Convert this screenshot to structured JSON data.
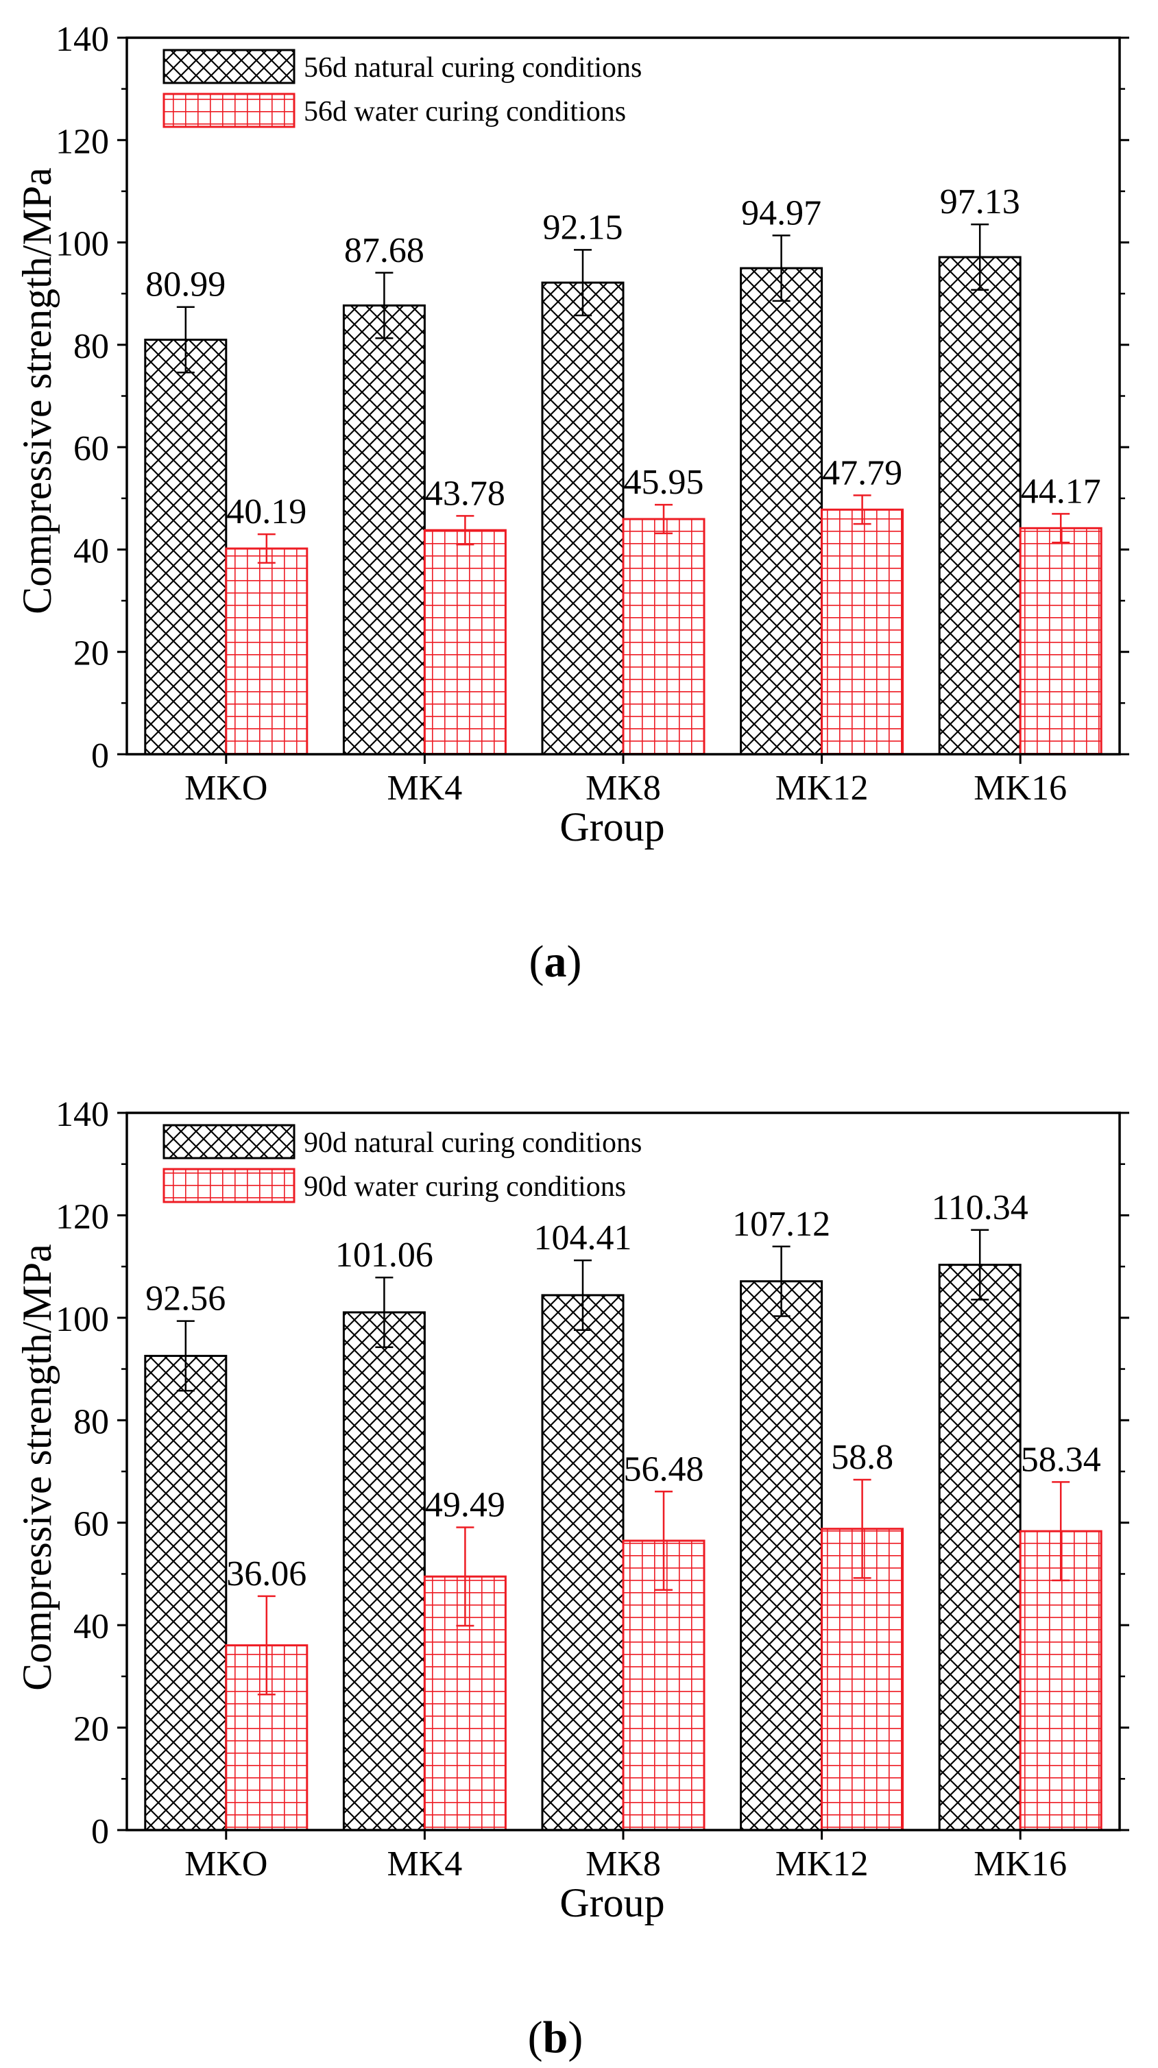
{
  "colors": {
    "natural": "#000000",
    "water": "#ee1c24",
    "axis": "#000000",
    "background": "#ffffff"
  },
  "panels": [
    {
      "caption_open": "(",
      "caption_letter": "a",
      "caption_close": ")"
    },
    {
      "caption_open": "(",
      "caption_letter": "b",
      "caption_close": ")"
    }
  ],
  "chart_data": [
    {
      "type": "bar",
      "title": "",
      "xlabel": "Group",
      "ylabel": "Compressive strength/MPa",
      "ylim": [
        0,
        140
      ],
      "yticks": [
        0,
        20,
        40,
        60,
        80,
        100,
        120,
        140
      ],
      "grid": false,
      "legend_position": "top-left",
      "categories": [
        "MKO",
        "MK4",
        "MK8",
        "MK12",
        "MK16"
      ],
      "series": [
        {
          "name": "56d natural curing conditions",
          "pattern": "crosshatch",
          "values": [
            80.99,
            87.68,
            92.15,
            94.97,
            97.13
          ],
          "labels": [
            "80.99",
            "87.68",
            "92.15",
            "94.97",
            "97.13"
          ],
          "errors": [
            6.4,
            6.4,
            6.4,
            6.4,
            6.4
          ]
        },
        {
          "name": "56d water curing conditions",
          "pattern": "grid",
          "values": [
            40.19,
            43.78,
            45.95,
            47.79,
            44.17
          ],
          "labels": [
            "40.19",
            "43.78",
            "45.95",
            "47.79",
            "44.17"
          ],
          "errors": [
            2.8,
            2.8,
            2.8,
            2.8,
            2.8
          ]
        }
      ]
    },
    {
      "type": "bar",
      "title": "",
      "xlabel": "Group",
      "ylabel": "Compressive strength/MPa",
      "ylim": [
        0,
        140
      ],
      "yticks": [
        0,
        20,
        40,
        60,
        80,
        100,
        120,
        140
      ],
      "grid": false,
      "legend_position": "top-left",
      "categories": [
        "MKO",
        "MK4",
        "MK8",
        "MK12",
        "MK16"
      ],
      "series": [
        {
          "name": "90d natural curing conditions",
          "pattern": "crosshatch",
          "values": [
            92.56,
            101.06,
            104.41,
            107.12,
            110.34
          ],
          "labels": [
            "92.56",
            "101.06",
            "104.41",
            "107.12",
            "110.34"
          ],
          "errors": [
            6.8,
            6.8,
            6.8,
            6.8,
            6.8
          ]
        },
        {
          "name": "90d water curing conditions",
          "pattern": "grid",
          "values": [
            36.06,
            49.49,
            56.48,
            58.8,
            58.34
          ],
          "labels": [
            "36.06",
            "49.49",
            "56.48",
            "58.8",
            "58.34"
          ],
          "errors": [
            9.6,
            9.6,
            9.6,
            9.6,
            9.6
          ]
        }
      ]
    }
  ]
}
